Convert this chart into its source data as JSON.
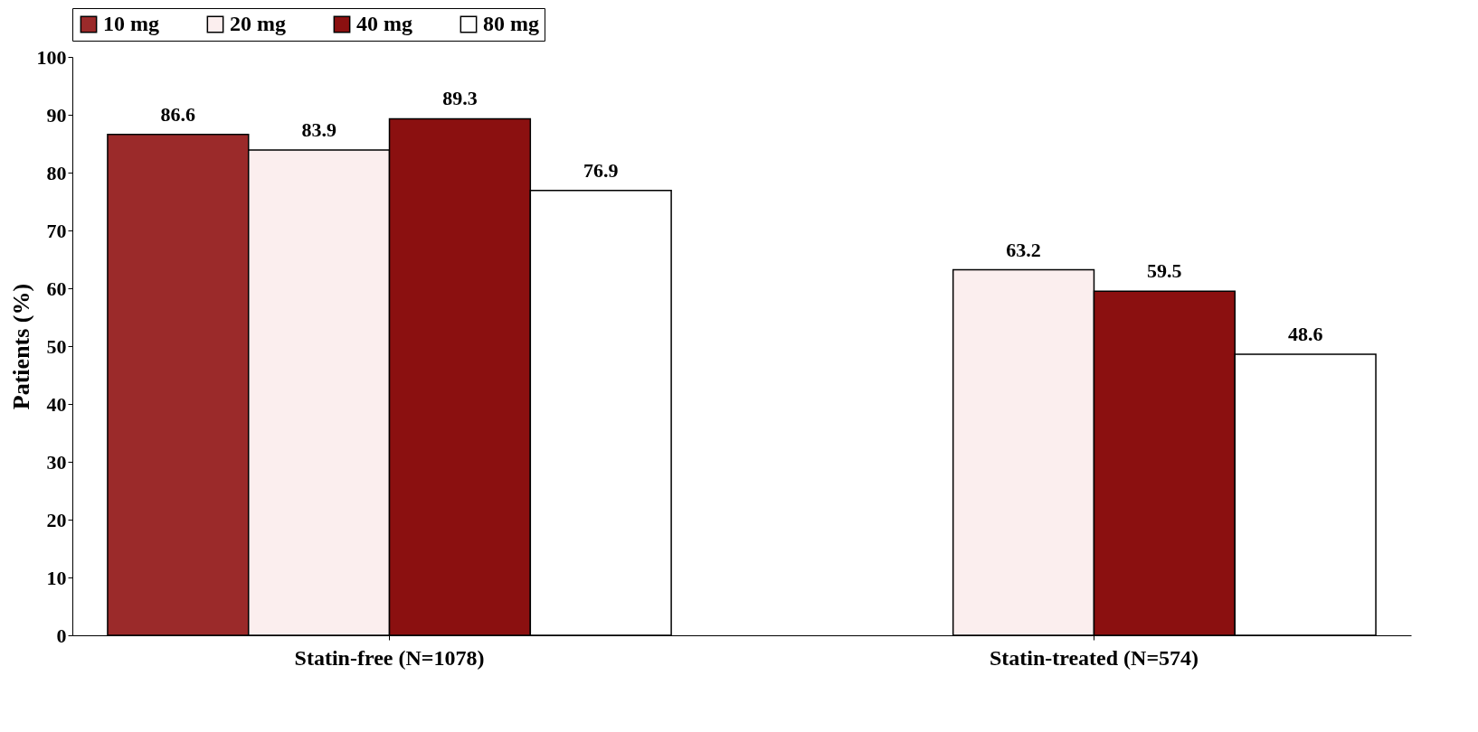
{
  "chart_data": {
    "type": "bar",
    "ylabel": "Patients (%)",
    "categories": [
      "Statin-free (N=1078)",
      "Statin-treated (N=574)"
    ],
    "series": [
      {
        "name": "10 mg",
        "color": "#9b2a2a",
        "values": [
          86.6,
          null
        ]
      },
      {
        "name": "20 mg",
        "color": "#fbeeee",
        "values": [
          83.9,
          63.2
        ]
      },
      {
        "name": "40 mg",
        "color": "#8b1010",
        "values": [
          89.3,
          59.5
        ]
      },
      {
        "name": "80 mg",
        "color": "#ffffff",
        "values": [
          76.9,
          48.6
        ]
      }
    ],
    "ylim": [
      0,
      100
    ],
    "yticks": [
      0,
      10,
      20,
      30,
      40,
      50,
      60,
      70,
      80,
      90,
      100
    ],
    "grid": false,
    "legend": "top",
    "data_labels": true
  }
}
